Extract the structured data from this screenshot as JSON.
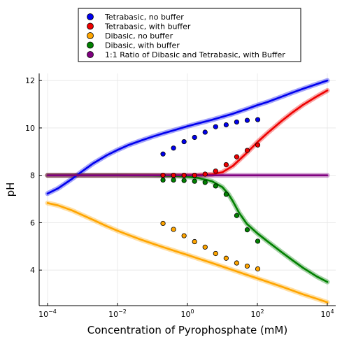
{
  "chart_data": {
    "type": "scatter",
    "xlabel": "Concentration of Pyrophosphate (mM)",
    "ylabel": "pH",
    "xscale": "log10",
    "xlim": [
      0.0001,
      10000
    ],
    "ylim": [
      2.5,
      12.3
    ],
    "x_ticks": [
      {
        "value": 0.0001,
        "base": "10",
        "exp": "−4"
      },
      {
        "value": 0.01,
        "base": "10",
        "exp": "−2"
      },
      {
        "value": 1,
        "base": "10",
        "exp": "0"
      },
      {
        "value": 100,
        "base": "10",
        "exp": "2"
      },
      {
        "value": 10000,
        "base": "10",
        "exp": "4"
      }
    ],
    "y_ticks": [
      4,
      6,
      8,
      10,
      12
    ],
    "grid": true,
    "legend_position": "top (outside plot)",
    "series": [
      {
        "name": "Tetrabasic, no buffer",
        "color": "#0000ee",
        "points_x": [
          0.2,
          0.4,
          0.8,
          1.6,
          3.2,
          6.4,
          12.8,
          25.6,
          51.2,
          102.4
        ],
        "points_y": [
          8.9,
          9.15,
          9.42,
          9.6,
          9.82,
          10.05,
          10.13,
          10.25,
          10.32,
          10.35
        ],
        "curve_x": [
          0.0001,
          0.0002,
          0.0005,
          0.001,
          0.002,
          0.005,
          0.01,
          0.02,
          0.05,
          0.1,
          0.2,
          0.5,
          1,
          2,
          5,
          10,
          20,
          50,
          100,
          200,
          500,
          1000,
          2000,
          5000,
          10000
        ],
        "curve_y": [
          7.23,
          7.45,
          7.85,
          8.18,
          8.5,
          8.85,
          9.07,
          9.27,
          9.48,
          9.63,
          9.77,
          9.94,
          10.07,
          10.19,
          10.34,
          10.47,
          10.6,
          10.8,
          10.96,
          11.1,
          11.32,
          11.49,
          11.65,
          11.85,
          12.0
        ]
      },
      {
        "name": "Tetrabasic, with buffer",
        "color": "#ee0000",
        "points_x": [
          0.2,
          0.4,
          0.8,
          1.6,
          3.2,
          6.4,
          12.8,
          25.6,
          51.2,
          102.4
        ],
        "points_y": [
          8.0,
          8.0,
          8.0,
          8.0,
          8.05,
          8.18,
          8.45,
          8.78,
          9.05,
          9.28
        ],
        "curve_x": [
          0.0001,
          0.001,
          0.01,
          0.1,
          0.5,
          1,
          2,
          5,
          10,
          20,
          50,
          100,
          200,
          500,
          1000,
          2000,
          5000,
          10000
        ],
        "curve_y": [
          8.0,
          8.0,
          8.0,
          8.0,
          8.0,
          8.0,
          8.01,
          8.04,
          8.13,
          8.4,
          8.95,
          9.4,
          9.8,
          10.3,
          10.65,
          10.97,
          11.33,
          11.58
        ]
      },
      {
        "name": "Dibasic, no buffer",
        "color": "#ffa500",
        "points_x": [
          0.2,
          0.4,
          0.8,
          1.6,
          3.2,
          6.4,
          12.8,
          25.6,
          51.2,
          102.4
        ],
        "points_y": [
          5.97,
          5.72,
          5.45,
          5.2,
          4.97,
          4.7,
          4.5,
          4.3,
          4.17,
          4.05
        ],
        "curve_x": [
          0.0001,
          0.0002,
          0.0005,
          0.001,
          0.002,
          0.005,
          0.01,
          0.02,
          0.05,
          0.1,
          0.2,
          0.5,
          1,
          2,
          5,
          10,
          20,
          50,
          100,
          200,
          500,
          1000,
          2000,
          5000,
          10000
        ],
        "curve_y": [
          6.83,
          6.73,
          6.52,
          6.32,
          6.12,
          5.85,
          5.66,
          5.49,
          5.27,
          5.12,
          4.97,
          4.78,
          4.64,
          4.49,
          4.3,
          4.15,
          4.0,
          3.8,
          3.65,
          3.5,
          3.3,
          3.14,
          2.98,
          2.79,
          2.64
        ]
      },
      {
        "name": "Dibasic, with buffer",
        "color": "#008000",
        "points_x": [
          0.2,
          0.4,
          0.8,
          1.6,
          3.2,
          6.4,
          12.8,
          25.6,
          51.2,
          102.4
        ],
        "points_y": [
          7.8,
          7.8,
          7.78,
          7.75,
          7.7,
          7.55,
          7.2,
          6.3,
          5.7,
          5.22
        ],
        "curve_x": [
          0.0001,
          0.001,
          0.01,
          0.1,
          0.5,
          1,
          2,
          5,
          10,
          15,
          20,
          30,
          50,
          100,
          200,
          500,
          1000,
          2000,
          5000,
          10000
        ],
        "curve_y": [
          8.0,
          8.0,
          8.0,
          7.99,
          7.97,
          7.94,
          7.89,
          7.75,
          7.5,
          7.2,
          6.9,
          6.42,
          5.95,
          5.55,
          5.2,
          4.75,
          4.42,
          4.1,
          3.73,
          3.5
        ]
      },
      {
        "name": "1:1 Ratio of Dibasic and Tetrabasic, with Buffer",
        "color": "#800080",
        "points_x": [],
        "points_y": [],
        "curve_x": [
          0.0001,
          10000
        ],
        "curve_y": [
          8.0,
          8.0
        ]
      }
    ]
  }
}
